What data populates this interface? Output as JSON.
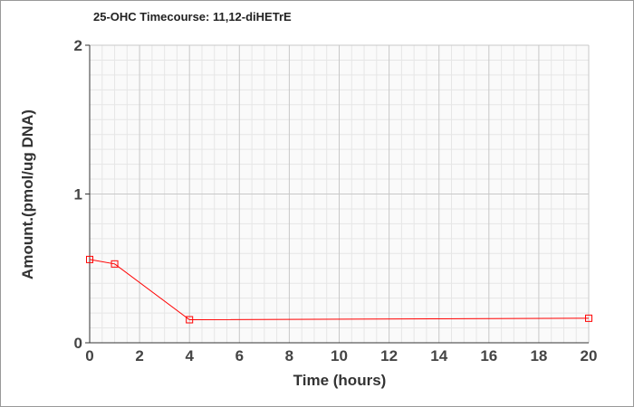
{
  "chart_data": {
    "type": "line",
    "title": "25-OHC Timecourse: 11,12-diHETrE",
    "xlabel": "Time (hours)",
    "ylabel": "Amount.(pmol/ug DNA)",
    "xlim": [
      0,
      20
    ],
    "ylim": [
      0,
      2
    ],
    "xticks": [
      "0",
      "2",
      "4",
      "6",
      "8",
      "10",
      "12",
      "14",
      "16",
      "18",
      "20"
    ],
    "yticks": [
      "0",
      "1",
      "2"
    ],
    "grid": true,
    "series": [
      {
        "x": [
          0,
          1,
          4,
          20
        ],
        "y": [
          0.56,
          0.53,
          0.155,
          0.165
        ],
        "color": "#ff0000",
        "marker": "square"
      }
    ]
  }
}
